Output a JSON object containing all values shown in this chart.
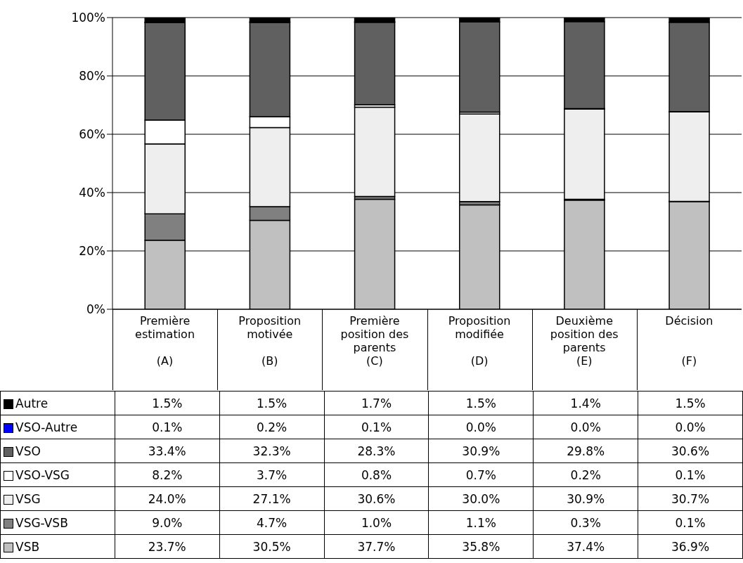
{
  "chart_data": {
    "type": "bar",
    "stacked": true,
    "categories": [
      "Première\nestimation\n\n(A)",
      "Proposition\nmotivée\n\n(B)",
      "Première\nposition des\nparents\n(C)",
      "Proposition\nmodifiée\n\n(D)",
      "Deuxième\nposition des\nparents\n(E)",
      "Décision\n\n\n(F)"
    ],
    "series": [
      {
        "name": "VSB",
        "color": "#c0c0c0",
        "values": [
          23.7,
          30.5,
          37.7,
          35.8,
          37.4,
          36.9
        ],
        "value_labels": [
          "23.7%",
          "30.5%",
          "37.7%",
          "35.8%",
          "37.4%",
          "36.9%"
        ]
      },
      {
        "name": "VSG-VSB",
        "color": "#808080",
        "values": [
          9.0,
          4.7,
          1.0,
          1.1,
          0.3,
          0.1
        ],
        "value_labels": [
          "9.0%",
          "4.7%",
          "1.0%",
          "1.1%",
          "0.3%",
          "0.1%"
        ]
      },
      {
        "name": "VSG",
        "color": "#eeeeee",
        "values": [
          24.0,
          27.1,
          30.6,
          30.0,
          30.9,
          30.7
        ],
        "value_labels": [
          "24.0%",
          "27.1%",
          "30.6%",
          "30.0%",
          "30.9%",
          "30.7%"
        ]
      },
      {
        "name": "VSO-VSG",
        "color": "#ffffff",
        "values": [
          8.2,
          3.7,
          0.8,
          0.7,
          0.2,
          0.1
        ],
        "value_labels": [
          "8.2%",
          "3.7%",
          "0.8%",
          "0.7%",
          "0.2%",
          "0.1%"
        ]
      },
      {
        "name": "VSO",
        "color": "#606060",
        "values": [
          33.4,
          32.3,
          28.3,
          30.9,
          29.8,
          30.6
        ],
        "value_labels": [
          "33.4%",
          "32.3%",
          "28.3%",
          "30.9%",
          "29.8%",
          "30.6%"
        ]
      },
      {
        "name": "VSO-Autre",
        "color": "#0000ff",
        "values": [
          0.1,
          0.2,
          0.1,
          0.0,
          0.0,
          0.0
        ],
        "value_labels": [
          "0.1%",
          "0.2%",
          "0.1%",
          "0.0%",
          "0.0%",
          "0.0%"
        ]
      },
      {
        "name": "Autre",
        "color": "#000000",
        "values": [
          1.5,
          1.5,
          1.7,
          1.5,
          1.4,
          1.5
        ],
        "value_labels": [
          "1.5%",
          "1.5%",
          "1.7%",
          "1.5%",
          "1.4%",
          "1.5%"
        ]
      }
    ],
    "ylim": [
      0,
      100
    ],
    "yticks": [
      {
        "value": 0,
        "label": "0%"
      },
      {
        "value": 20,
        "label": "20%"
      },
      {
        "value": 40,
        "label": "40%"
      },
      {
        "value": 60,
        "label": "60%"
      },
      {
        "value": 80,
        "label": "80%"
      },
      {
        "value": 100,
        "label": "100%"
      }
    ],
    "grid": "y",
    "legend": "left"
  }
}
